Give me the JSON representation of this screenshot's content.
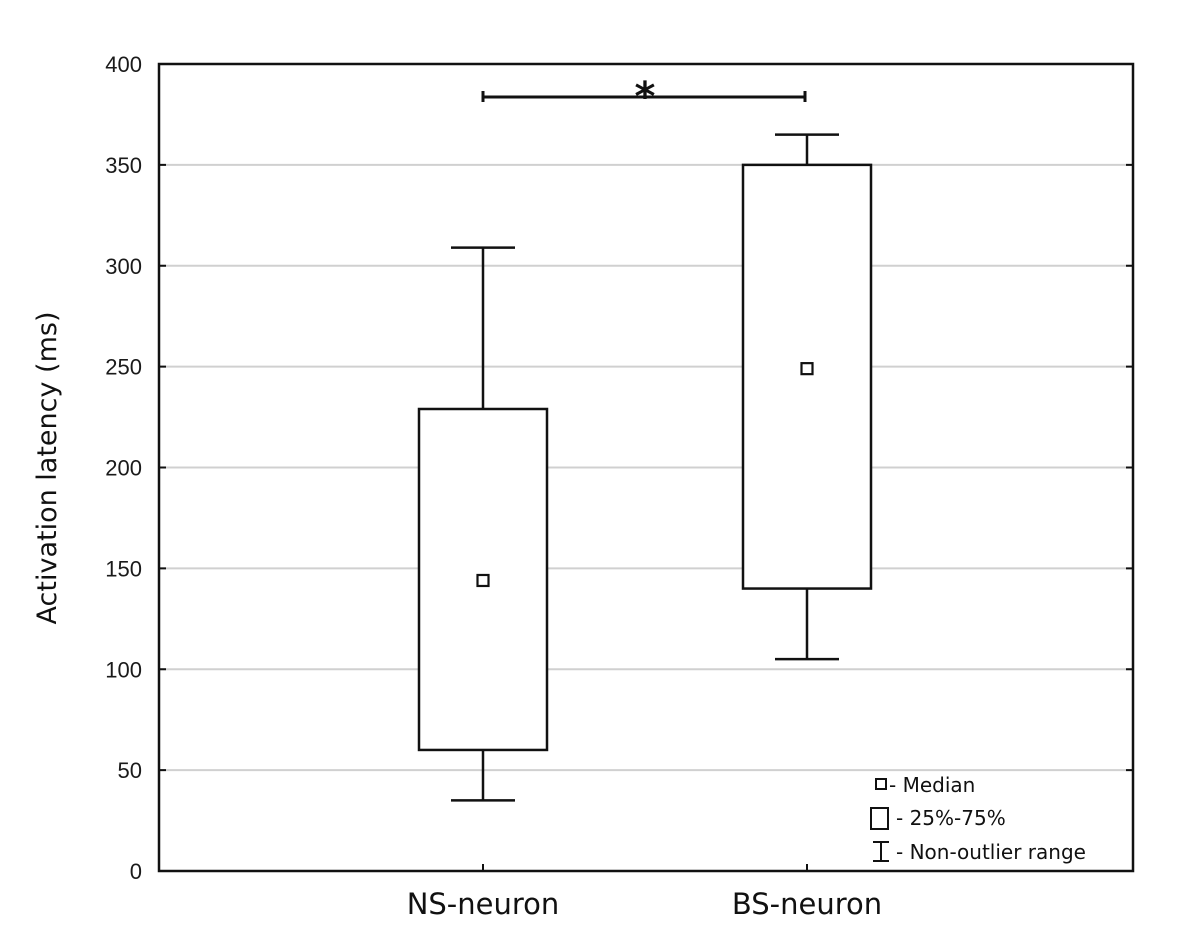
{
  "chart_data": {
    "type": "boxplot",
    "title": "",
    "xlabel": "",
    "ylabel": "Activation latency (ms)",
    "ylim": [
      0,
      400
    ],
    "yticks": [
      0,
      50,
      100,
      150,
      200,
      250,
      300,
      350,
      400
    ],
    "grid": "horizontal",
    "categories": [
      "NS-neuron",
      "BS-neuron"
    ],
    "series": [
      {
        "name": "NS-neuron",
        "whisker_low": 35,
        "q1": 60,
        "median": 144,
        "q3": 229,
        "whisker_high": 309
      },
      {
        "name": "BS-neuron",
        "whisker_low": 105,
        "q1": 140,
        "median": 249,
        "q3": 350,
        "whisker_high": 365
      }
    ],
    "annotations": [
      {
        "type": "significance",
        "between": [
          "NS-neuron",
          "BS-neuron"
        ],
        "label": "*"
      }
    ],
    "legend": {
      "position": "lower right",
      "entries": [
        {
          "symbol": "small-square",
          "label": "- Median"
        },
        {
          "symbol": "box",
          "label": "- 25%-75%"
        },
        {
          "symbol": "whisker",
          "label": "- Non-outlier range"
        }
      ]
    }
  },
  "labels": {
    "ylabel": "Activation latency (ms)",
    "yticks": [
      "0",
      "50",
      "100",
      "150",
      "200",
      "250",
      "300",
      "350",
      "400"
    ],
    "categories": [
      "NS-neuron",
      "BS-neuron"
    ],
    "significance": "*",
    "legend": [
      "- Median",
      "- 25%-75%",
      "- Non-outlier range"
    ]
  },
  "colors": {
    "axis": "#111111",
    "grid": "#d0d0d0",
    "box_fill": "#ffffff",
    "box_stroke": "#111111"
  }
}
